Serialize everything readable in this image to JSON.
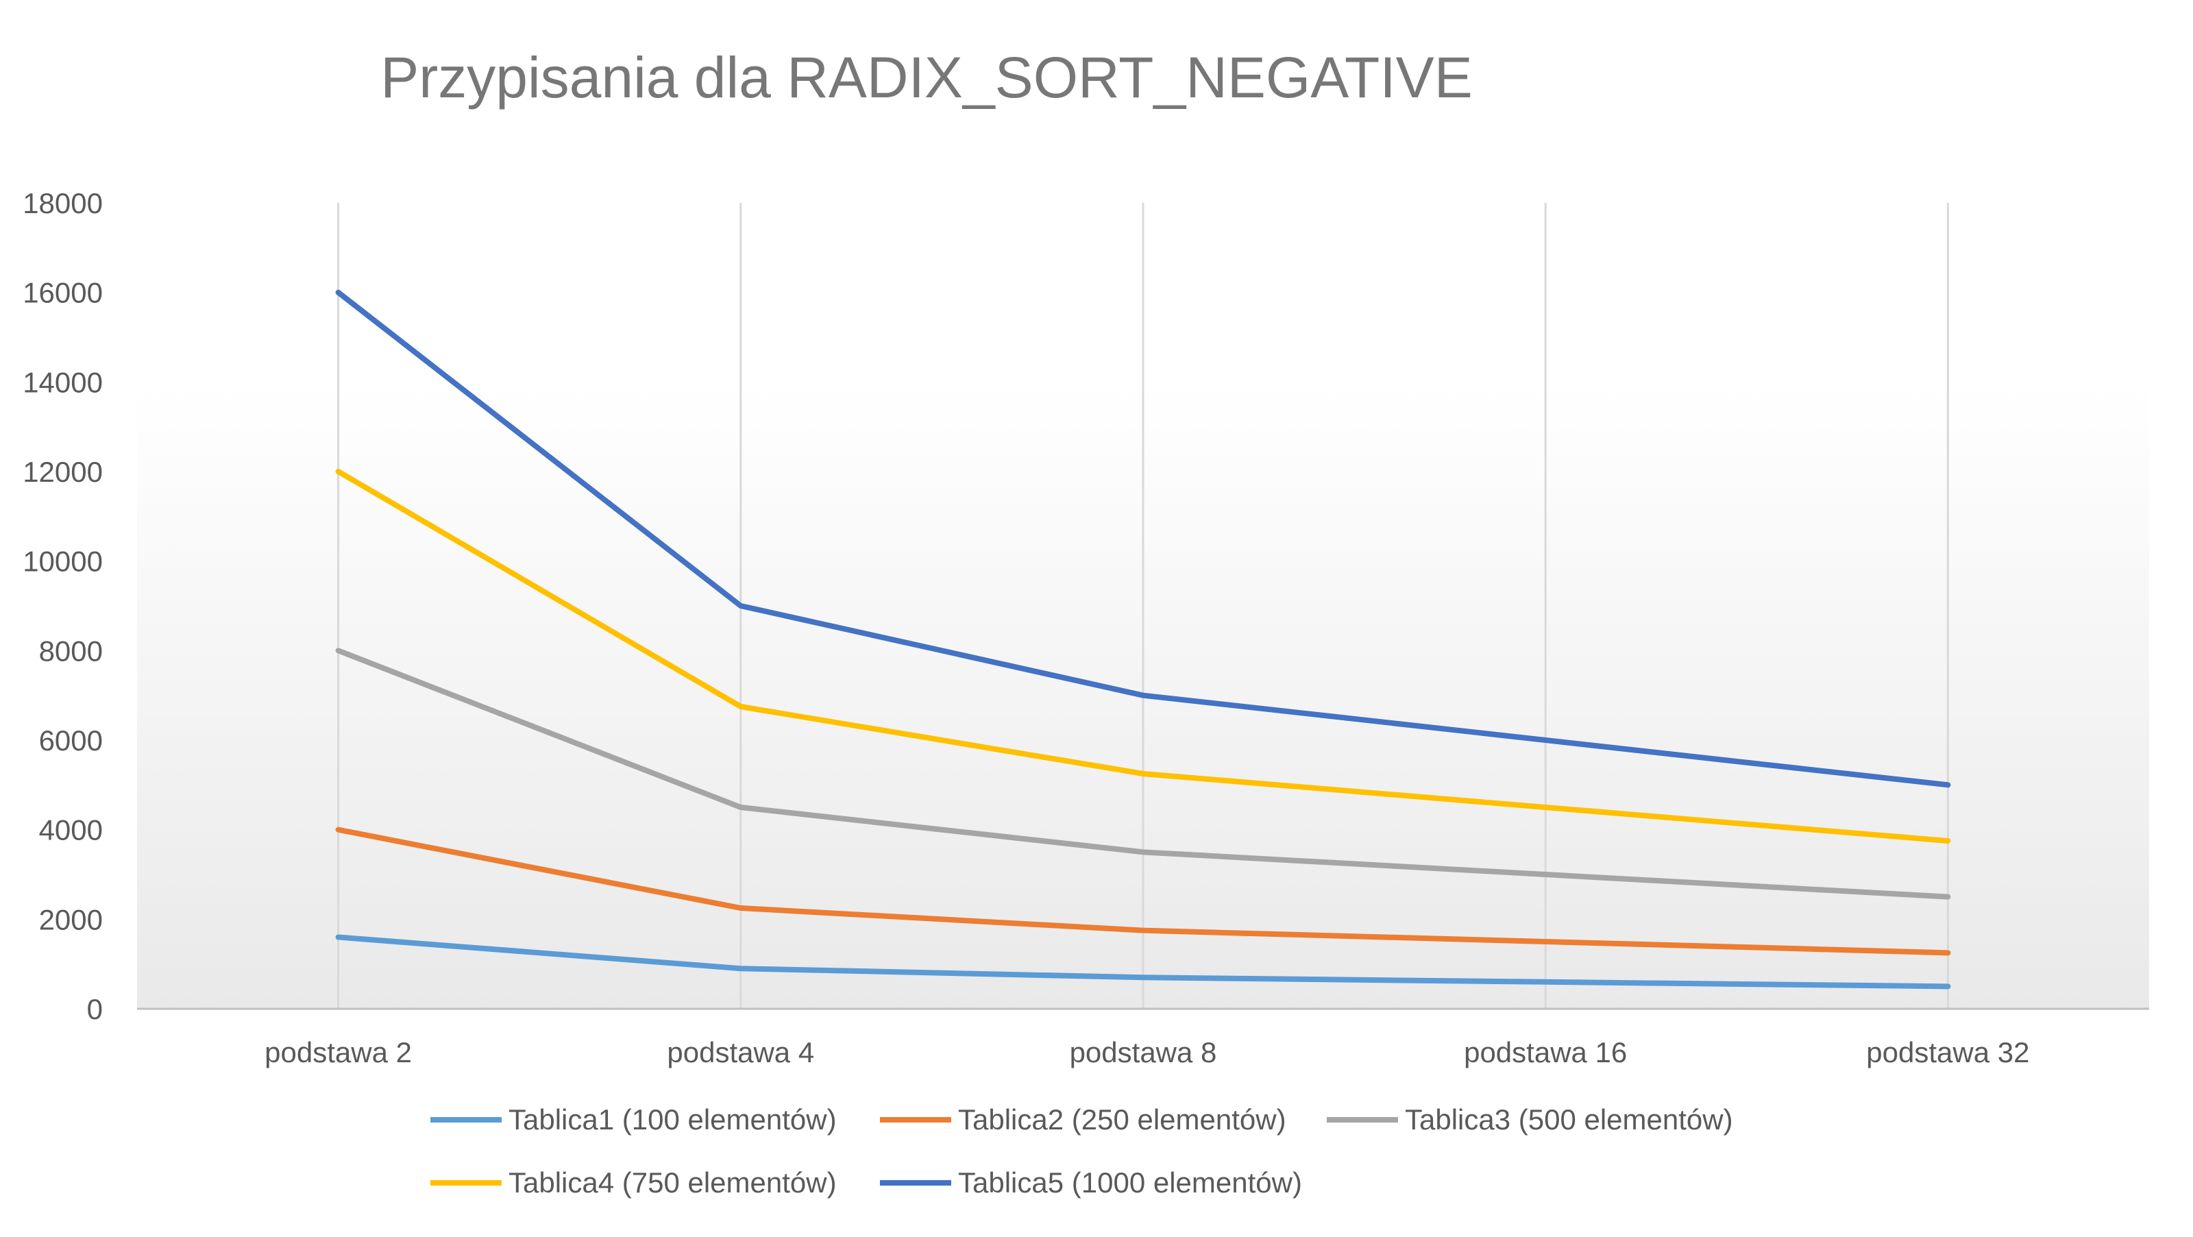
{
  "chart_data": {
    "type": "line",
    "title": "Przypisania dla RADIX_SORT_NEGATIVE",
    "xlabel": "",
    "ylabel": "",
    "categories": [
      "podstawa 2",
      "podstawa 4",
      "podstawa 8",
      "podstawa 16",
      "podstawa 32"
    ],
    "ylim": [
      0,
      18000
    ],
    "yticks": [
      "0",
      "2000",
      "4000",
      "6000",
      "8000",
      "10000",
      "12000",
      "14000",
      "16000",
      "18000"
    ],
    "grid": "vertical lines at categories",
    "legend_position": "bottom",
    "series": [
      {
        "name": "Tablica1 (100 elementów)",
        "color": "#5b9bd5",
        "values": [
          1600,
          900,
          700,
          600,
          500
        ]
      },
      {
        "name": "Tablica2 (250 elementów)",
        "color": "#ed7d31",
        "values": [
          4000,
          2250,
          1750,
          1500,
          1250
        ]
      },
      {
        "name": "Tablica3 (500 elementów)",
        "color": "#a5a5a5",
        "values": [
          8000,
          4500,
          3500,
          3000,
          2500
        ]
      },
      {
        "name": "Tablica4 (750 elementów)",
        "color": "#ffc000",
        "values": [
          12000,
          6750,
          5250,
          4500,
          3750
        ]
      },
      {
        "name": "Tablica5 (1000 elementów)",
        "color": "#4472c4",
        "values": [
          16000,
          9000,
          7000,
          6000,
          5000
        ]
      }
    ]
  }
}
